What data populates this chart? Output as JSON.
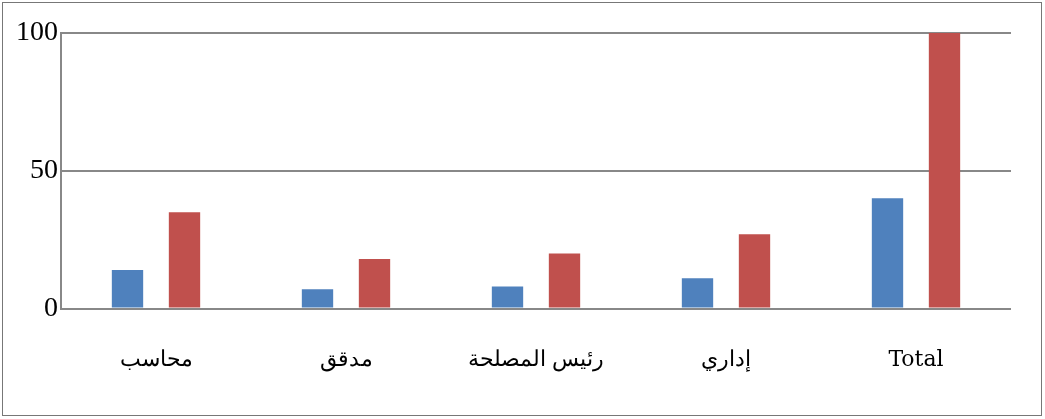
{
  "chart_data": {
    "type": "bar",
    "categories": [
      "محاسب",
      "مدقق",
      "رئيس المصلحة",
      "إداري",
      "Total"
    ],
    "series": [
      {
        "color": "#4f81bd",
        "values": [
          14,
          7,
          8,
          11,
          40
        ]
      },
      {
        "color": "#c0504d",
        "values": [
          35,
          18,
          20,
          27,
          100
        ]
      }
    ],
    "ylim": [
      0,
      100
    ],
    "yticks": [
      0,
      50,
      100
    ],
    "grid": "y",
    "legend": false
  }
}
